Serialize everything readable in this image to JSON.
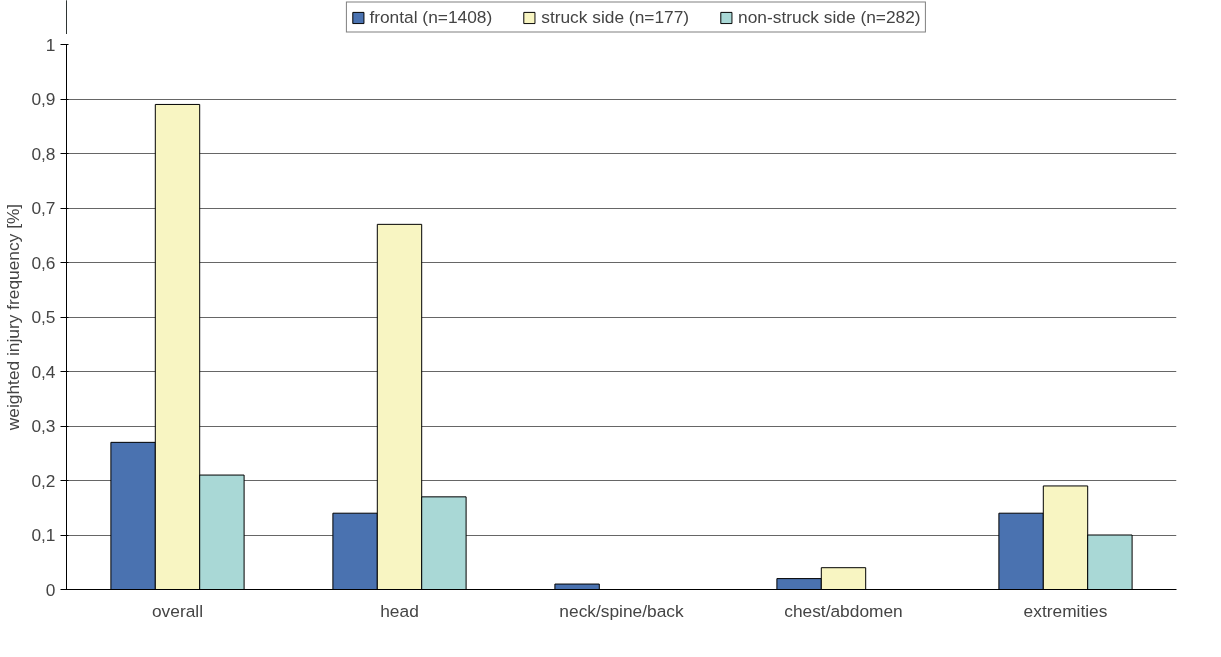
{
  "chart_data": {
    "type": "bar",
    "ylabel": "weighted injury frequency [%]",
    "categories": [
      "overall",
      "head",
      "neck/spine/back",
      "chest/abdomen",
      "extremities"
    ],
    "series": [
      {
        "name": "frontal (n=1408)",
        "color": "#4a72b0",
        "values": [
          0.27,
          0.14,
          0.01,
          0.02,
          0.14
        ]
      },
      {
        "name": "struck side (n=177)",
        "color": "#f8f5c2",
        "values": [
          0.89,
          0.67,
          0,
          0.04,
          0.19
        ]
      },
      {
        "name": "non-struck side (n=282)",
        "color": "#a9d8d6",
        "values": [
          0.21,
          0.17,
          0,
          0,
          0.1
        ]
      }
    ],
    "ylim": [
      0,
      1
    ],
    "yticks": [
      0,
      {
        "value": 0.1,
        "label": "0,1"
      },
      {
        "value": 0.2,
        "label": "0,2"
      },
      {
        "value": 0.3,
        "label": "0,3"
      },
      {
        "value": 0.4,
        "label": "0,4"
      },
      {
        "value": 0.5,
        "label": "0,5"
      },
      {
        "value": 0.6,
        "label": "0,6"
      },
      {
        "value": 0.7,
        "label": "0,7"
      },
      {
        "value": 0.8,
        "label": "0,8"
      },
      {
        "value": 0.9,
        "label": "0,9"
      },
      1
    ],
    "grid": "y",
    "legend": "top"
  }
}
